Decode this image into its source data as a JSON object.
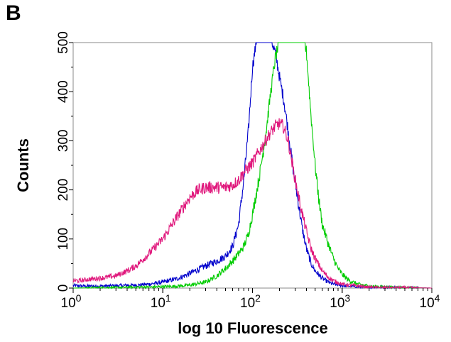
{
  "panel_label": "B",
  "chart_data": {
    "type": "line",
    "title": "",
    "xlabel": "log 10 Fluorescence",
    "ylabel": "Counts",
    "xscale": "log",
    "xlim": [
      1,
      10000
    ],
    "ylim": [
      0,
      500
    ],
    "xticks": [
      {
        "base": "10",
        "exp": "0",
        "value": 1
      },
      {
        "base": "10",
        "exp": "1",
        "value": 10
      },
      {
        "base": "10",
        "exp": "2",
        "value": 100
      },
      {
        "base": "10",
        "exp": "3",
        "value": 1000
      },
      {
        "base": "10",
        "exp": "4",
        "value": 10000
      }
    ],
    "yticks": [
      "0",
      "100",
      "200",
      "300",
      "400",
      "500"
    ],
    "grid": false,
    "legend": "none",
    "series": [
      {
        "color": "#0000cc",
        "x": [
          1,
          1.5,
          2,
          3,
          5,
          7,
          10,
          15,
          20,
          30,
          40,
          50,
          60,
          70,
          80,
          90,
          100,
          110,
          120,
          135,
          150,
          165,
          180,
          200,
          225,
          250,
          280,
          320,
          360,
          400,
          450,
          500,
          600,
          700,
          800,
          1000,
          1500,
          2000,
          3000,
          5000,
          10000
        ],
        "y": [
          5,
          4,
          4,
          5,
          6,
          8,
          12,
          20,
          30,
          45,
          55,
          65,
          85,
          130,
          220,
          320,
          450,
          500,
          500,
          500,
          500,
          500,
          480,
          430,
          380,
          320,
          250,
          180,
          120,
          80,
          50,
          35,
          20,
          12,
          8,
          5,
          3,
          2,
          2,
          1,
          0
        ]
      },
      {
        "color": "#00cc00",
        "x": [
          1,
          2,
          3,
          5,
          7,
          10,
          15,
          20,
          30,
          40,
          50,
          60,
          70,
          80,
          90,
          100,
          120,
          140,
          160,
          180,
          200,
          220,
          250,
          300,
          350,
          380,
          400,
          450,
          500,
          550,
          600,
          700,
          800,
          900,
          1000,
          1200,
          1500,
          2000,
          3000,
          5000,
          10000
        ],
        "y": [
          0,
          1,
          1,
          2,
          2,
          3,
          4,
          6,
          12,
          25,
          40,
          55,
          70,
          85,
          110,
          150,
          230,
          310,
          400,
          470,
          500,
          500,
          500,
          500,
          500,
          500,
          480,
          350,
          250,
          180,
          130,
          90,
          60,
          40,
          28,
          15,
          8,
          4,
          2,
          1,
          0
        ]
      },
      {
        "color": "#e0197d",
        "x": [
          1,
          1.2,
          1.5,
          2,
          3,
          4,
          5,
          7,
          10,
          15,
          20,
          25,
          30,
          40,
          50,
          60,
          70,
          80,
          100,
          120,
          150,
          180,
          200,
          220,
          250,
          280,
          300,
          350,
          400,
          450,
          500,
          600,
          700,
          800,
          1000,
          1500,
          2000,
          3000,
          5000,
          10000
        ],
        "y": [
          15,
          15,
          18,
          20,
          25,
          35,
          45,
          70,
          100,
          150,
          185,
          200,
          205,
          205,
          205,
          210,
          220,
          235,
          255,
          280,
          310,
          330,
          335,
          330,
          300,
          250,
          220,
          160,
          115,
          80,
          60,
          35,
          22,
          15,
          8,
          4,
          2,
          1,
          1,
          0
        ]
      }
    ]
  }
}
